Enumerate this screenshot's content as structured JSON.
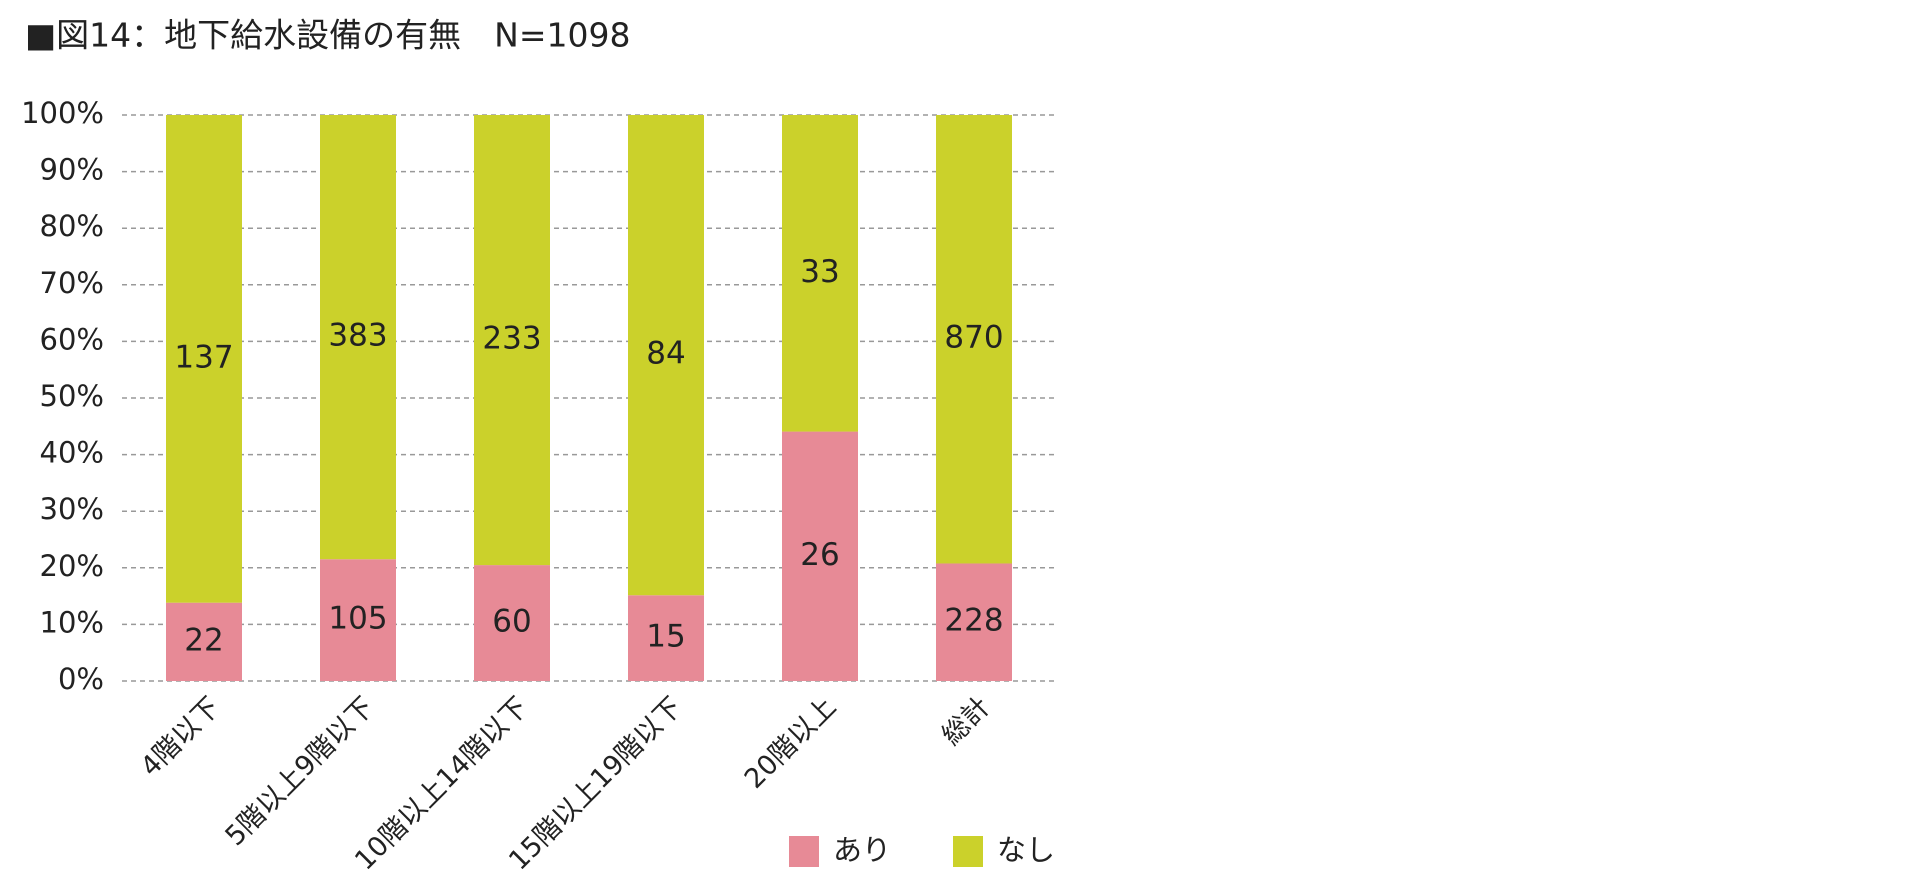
{
  "chart_data": {
    "type": "bar",
    "stack": "percent",
    "title": "■図14：地下給水設備の有無　N=1098",
    "categories": [
      "4階以下",
      "5階以上9階以下",
      "10階以上14階以下",
      "15階以上19階以下",
      "20階以上",
      "総計"
    ],
    "series": [
      {
        "name": "あり",
        "color": "#e78a96",
        "values": [
          22,
          105,
          60,
          15,
          26,
          228
        ]
      },
      {
        "name": "なし",
        "color": "#cbd12b",
        "values": [
          137,
          383,
          233,
          84,
          33,
          870
        ]
      }
    ],
    "ylim": [
      0,
      100
    ],
    "yticks": [
      {
        "value": 0,
        "label": "0%"
      },
      {
        "value": 10,
        "label": "10%"
      },
      {
        "value": 20,
        "label": "20%"
      },
      {
        "value": 30,
        "label": "30%"
      },
      {
        "value": 40,
        "label": "40%"
      },
      {
        "value": 50,
        "label": "50%"
      },
      {
        "value": 60,
        "label": "60%"
      },
      {
        "value": 70,
        "label": "70%"
      },
      {
        "value": 80,
        "label": "80%"
      },
      {
        "value": 90,
        "label": "90%"
      },
      {
        "value": 100,
        "label": "100%"
      }
    ],
    "grid": true,
    "legend": "bottom-right"
  }
}
